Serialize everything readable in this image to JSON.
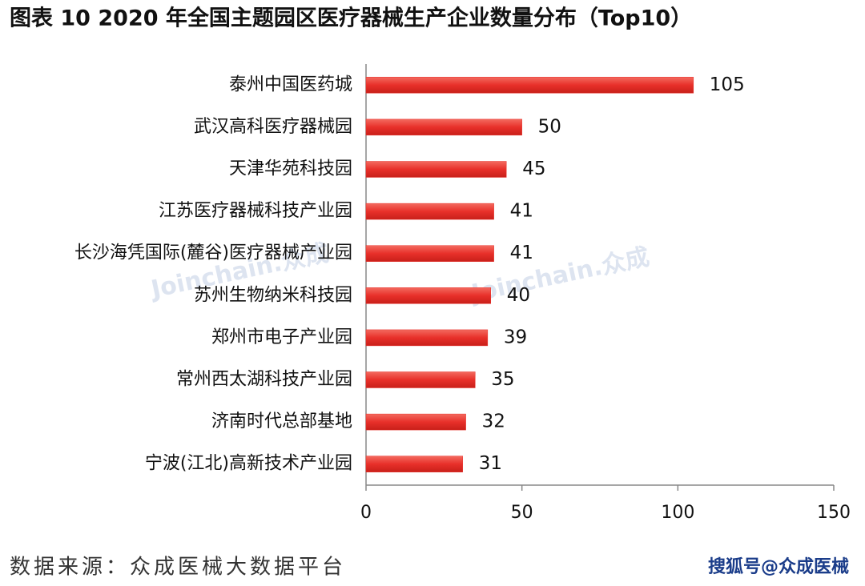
{
  "chart_data": {
    "type": "bar",
    "orientation": "horizontal",
    "title": "图表 10   2020 年全国主题园区医疗器械生产企业数量分布（Top10）",
    "categories": [
      "泰州中国医药城",
      "武汉高科医疗器械园",
      "天津华苑科技园",
      "江苏医疗器械科技产业园",
      "长沙海凭国际(麓谷)医疗器械产业园",
      "苏州生物纳米科技园",
      "郑州市电子产业园",
      "常州西太湖科技产业园",
      "济南时代总部基地",
      "宁波(江北)高新技术产业园"
    ],
    "values": [
      105,
      50,
      45,
      41,
      41,
      40,
      39,
      35,
      32,
      31
    ],
    "color": "#e8302a",
    "xlim": [
      0,
      150
    ],
    "xticks": [
      0,
      50,
      100,
      150
    ],
    "grid": false,
    "source": "数据来源：众成医械大数据平台",
    "watermark": "Joinchain.众成",
    "corner_mark": "搜狐号@众成医械"
  }
}
